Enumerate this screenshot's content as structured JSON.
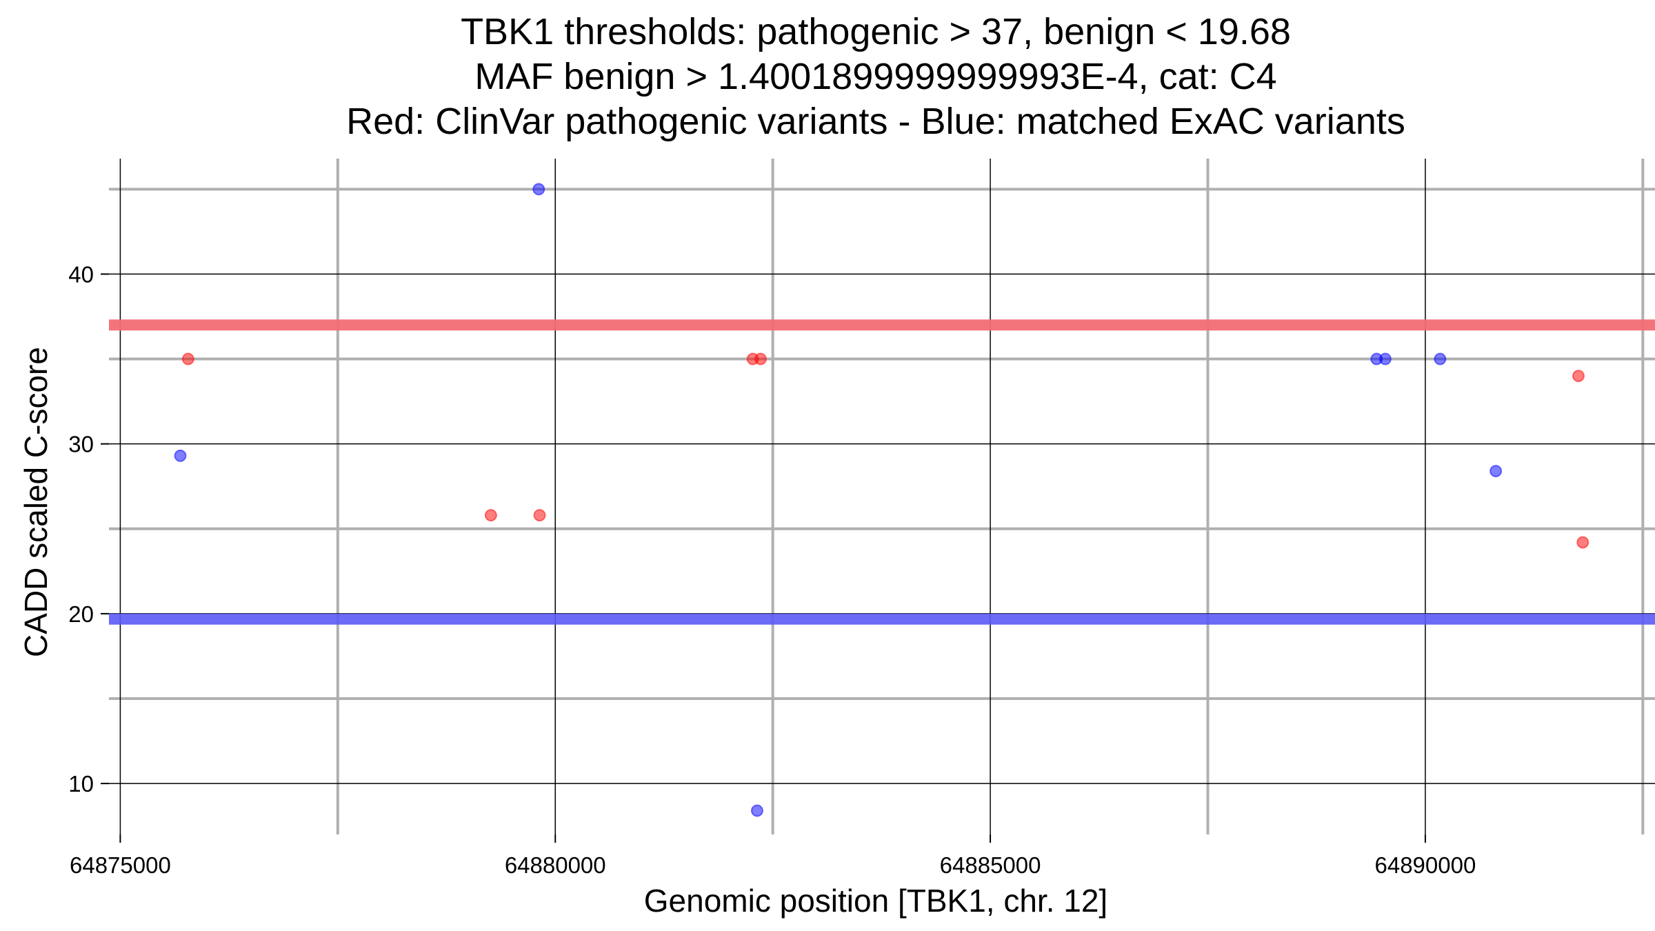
{
  "chart_data": {
    "type": "scatter",
    "title_lines": [
      "TBK1 thresholds: pathogenic > 37, benign < 19.68",
      "MAF benign > 1.4001899999999993E-4, cat: C4",
      "Red: ClinVar pathogenic variants - Blue: matched ExAC variants"
    ],
    "xlabel": "Genomic position [TBK1, chr. 12]",
    "ylabel": "CADD scaled C-score",
    "xlim": [
      64874870,
      64892640
    ],
    "ylim": [
      7,
      46.8
    ],
    "x_ticks": [
      64875000,
      64880000,
      64885000,
      64890000
    ],
    "x_minor": [
      64877500,
      64882500,
      64887500,
      64892500
    ],
    "y_ticks": [
      10,
      20,
      30,
      40
    ],
    "y_minor": [
      15,
      25,
      35,
      45
    ],
    "thresholds": [
      {
        "name": "pathogenic",
        "value": 37,
        "color": "#f26d74"
      },
      {
        "name": "benign",
        "value": 19.68,
        "color": "#5b5bf5"
      }
    ],
    "series": [
      {
        "name": "ClinVar pathogenic variants",
        "color": "#ff0000",
        "points": [
          {
            "x": 64875780,
            "y": 35
          },
          {
            "x": 64879260,
            "y": 25.8
          },
          {
            "x": 64879820,
            "y": 25.8
          },
          {
            "x": 64882270,
            "y": 35
          },
          {
            "x": 64882360,
            "y": 35
          },
          {
            "x": 64891760,
            "y": 34
          },
          {
            "x": 64891810,
            "y": 24.2
          }
        ]
      },
      {
        "name": "matched ExAC variants",
        "color": "#0000ff",
        "points": [
          {
            "x": 64875690,
            "y": 29.3
          },
          {
            "x": 64879810,
            "y": 45
          },
          {
            "x": 64882320,
            "y": 8.4
          },
          {
            "x": 64889440,
            "y": 35
          },
          {
            "x": 64889540,
            "y": 35
          },
          {
            "x": 64890170,
            "y": 35
          },
          {
            "x": 64890810,
            "y": 28.4
          }
        ]
      }
    ]
  }
}
